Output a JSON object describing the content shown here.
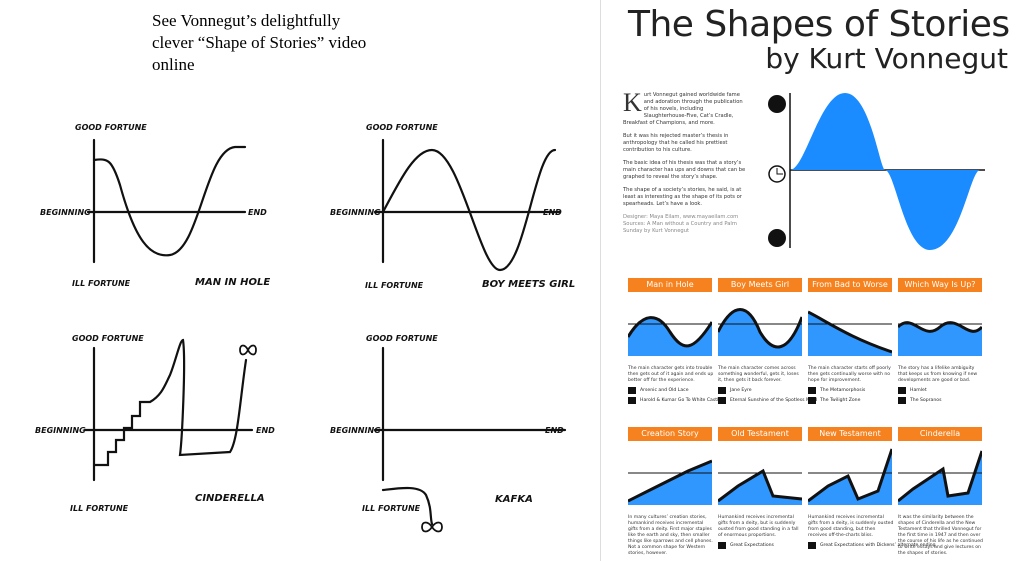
{
  "caption": "See Vonnegut’s delightfully clever “Shape of Stories” video online",
  "sketches": [
    {
      "good": "GOOD FORTUNE",
      "begin": "BEGINNING",
      "end": "END",
      "ill": "ILL FORTUNE",
      "name": "MAN IN HOLE"
    },
    {
      "good": "GOOD FORTUNE",
      "begin": "BEGINNING",
      "end": "END",
      "ill": "ILL FORTUNE",
      "name": "BOY MEETS GIRL"
    },
    {
      "good": "GOOD FORTUNE",
      "begin": "BEGINNING",
      "end": "END",
      "ill": "ILL FORTUNE",
      "name": "CINDERELLA"
    },
    {
      "good": "GOOD FORTUNE",
      "begin": "BEGINNING",
      "end": "END",
      "ill": "ILL FORTUNE",
      "name": "KAFKA"
    }
  ],
  "infographic": {
    "title": "The Shapes of Stories",
    "subtitle": "by Kurt Vonnegut",
    "accent": "#f5821f",
    "blue": "#1a8cff",
    "intro": [
      "urt Vonnegut gained worldwide fame and adoration through the publication of his novels, including Slaughterhouse-Five, Cat’s Cradle, Breakfast of Champions, and more.",
      "But it was his rejected master’s thesis in anthropology that he called his prettiest contribution to his culture.",
      "The basic idea of his thesis was that a story’s main character has ups and downs that can be graphed to reveal the story’s shape.",
      "The shape of a society’s stories, he said, is at least as interesting as the shape of its pots or spearheads. Let’s have a look."
    ],
    "dropcap": "K",
    "designer": "Designer:  Maya Eilam, www.mayaeilam.com",
    "sources": "Sources:  A Man without a Country and Palm Sunday by Kurt Vonnegut",
    "cards": [
      {
        "title": "Man in Hole",
        "text": "The main character gets into trouble then gets out of it again and ends up better off for the experience.",
        "examples": [
          "Arsenic and Old Lace",
          "Harold & Kumar Go To White Castle"
        ]
      },
      {
        "title": "Boy Meets Girl",
        "text": "The main character comes across something wonderful, gets it, loses it, then gets it back forever.",
        "examples": [
          "Jane Eyre",
          "Eternal Sunshine of the Spotless Mind"
        ]
      },
      {
        "title": "From Bad to Worse",
        "text": "The main character starts off poorly then gets continually worse with no hope for improvement.",
        "examples": [
          "The Metamorphosis",
          "The Twilight Zone"
        ]
      },
      {
        "title": "Which Way Is Up?",
        "text": "The story has a lifelike ambiguity that keeps us from knowing if new developments are good or bad.",
        "examples": [
          "Hamlet",
          "The Sopranos"
        ]
      },
      {
        "title": "Creation Story",
        "text": "In many cultures’ creation stories, humankind receives incremental gifts from a deity. First major staples like the earth and sky, then smaller things like sparrows and cell phones. Not a common shape for Western stories, however.",
        "examples": []
      },
      {
        "title": "Old Testament",
        "text": "Humankind receives incremental gifts from a deity, but is suddenly ousted from good standing in a fall of enormous proportions.",
        "examples": [
          "Great Expectations"
        ]
      },
      {
        "title": "New Testament",
        "text": "Humankind receives incremental gifts from a deity, is suddenly ousted from good standing, but then receives off-the-charts bliss.",
        "examples": [
          "Great Expectations with Dickens’ alternate ending"
        ]
      },
      {
        "title": "Cinderella",
        "text": "It was the similarity between the shapes of Cinderella and the New Testament that thrilled Vonnegut for the first time in 1947 and then over the course of his life as he continued to write essays and give lectures on the shapes of stories.",
        "examples": []
      }
    ]
  }
}
